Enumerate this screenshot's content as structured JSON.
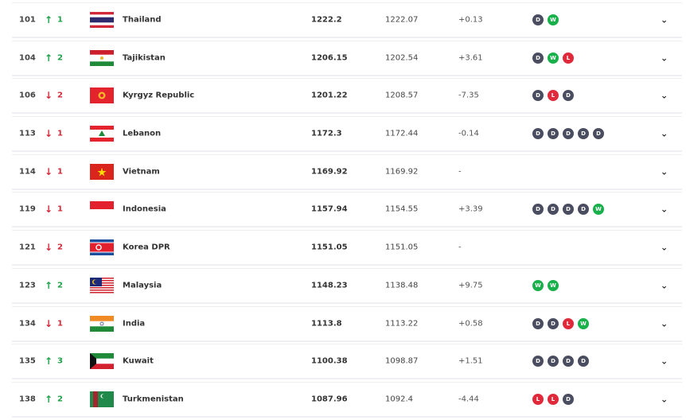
{
  "colors": {
    "up": "#1fa24a",
    "down": "#d62a3a",
    "D": "#4a4d60",
    "W": "#17b04a",
    "L": "#e02a3b"
  },
  "rows": [
    {
      "rank": "101",
      "dir": "up",
      "change": "1",
      "country": "Thailand",
      "flag": "thailand",
      "points": "1222.2",
      "previous": "1222.07",
      "diff": "+0.13",
      "form": [
        "D",
        "W"
      ]
    },
    {
      "rank": "104",
      "dir": "up",
      "change": "2",
      "country": "Tajikistan",
      "flag": "tajikistan",
      "points": "1206.15",
      "previous": "1202.54",
      "diff": "+3.61",
      "form": [
        "D",
        "W",
        "L"
      ]
    },
    {
      "rank": "106",
      "dir": "down",
      "change": "2",
      "country": "Kyrgyz Republic",
      "flag": "kyrgyz",
      "points": "1201.22",
      "previous": "1208.57",
      "diff": "-7.35",
      "form": [
        "D",
        "L",
        "D"
      ]
    },
    {
      "rank": "113",
      "dir": "down",
      "change": "1",
      "country": "Lebanon",
      "flag": "lebanon",
      "points": "1172.3",
      "previous": "1172.44",
      "diff": "-0.14",
      "form": [
        "D",
        "D",
        "D",
        "D",
        "D"
      ]
    },
    {
      "rank": "114",
      "dir": "down",
      "change": "1",
      "country": "Vietnam",
      "flag": "vietnam",
      "points": "1169.92",
      "previous": "1169.92",
      "diff": "-",
      "form": []
    },
    {
      "rank": "119",
      "dir": "down",
      "change": "1",
      "country": "Indonesia",
      "flag": "indonesia",
      "points": "1157.94",
      "previous": "1154.55",
      "diff": "+3.39",
      "form": [
        "D",
        "D",
        "D",
        "D",
        "W"
      ]
    },
    {
      "rank": "121",
      "dir": "down",
      "change": "2",
      "country": "Korea DPR",
      "flag": "korea-dpr",
      "points": "1151.05",
      "previous": "1151.05",
      "diff": "-",
      "form": []
    },
    {
      "rank": "123",
      "dir": "up",
      "change": "2",
      "country": "Malaysia",
      "flag": "malaysia",
      "points": "1148.23",
      "previous": "1138.48",
      "diff": "+9.75",
      "form": [
        "W",
        "W"
      ]
    },
    {
      "rank": "134",
      "dir": "down",
      "change": "1",
      "country": "India",
      "flag": "india",
      "points": "1113.8",
      "previous": "1113.22",
      "diff": "+0.58",
      "form": [
        "D",
        "D",
        "L",
        "W"
      ]
    },
    {
      "rank": "135",
      "dir": "up",
      "change": "3",
      "country": "Kuwait",
      "flag": "kuwait",
      "points": "1100.38",
      "previous": "1098.87",
      "diff": "+1.51",
      "form": [
        "D",
        "D",
        "D",
        "D"
      ]
    },
    {
      "rank": "138",
      "dir": "up",
      "change": "2",
      "country": "Turkmenistan",
      "flag": "turkmenistan",
      "points": "1087.96",
      "previous": "1092.4",
      "diff": "-4.44",
      "form": [
        "L",
        "L",
        "D"
      ]
    }
  ]
}
